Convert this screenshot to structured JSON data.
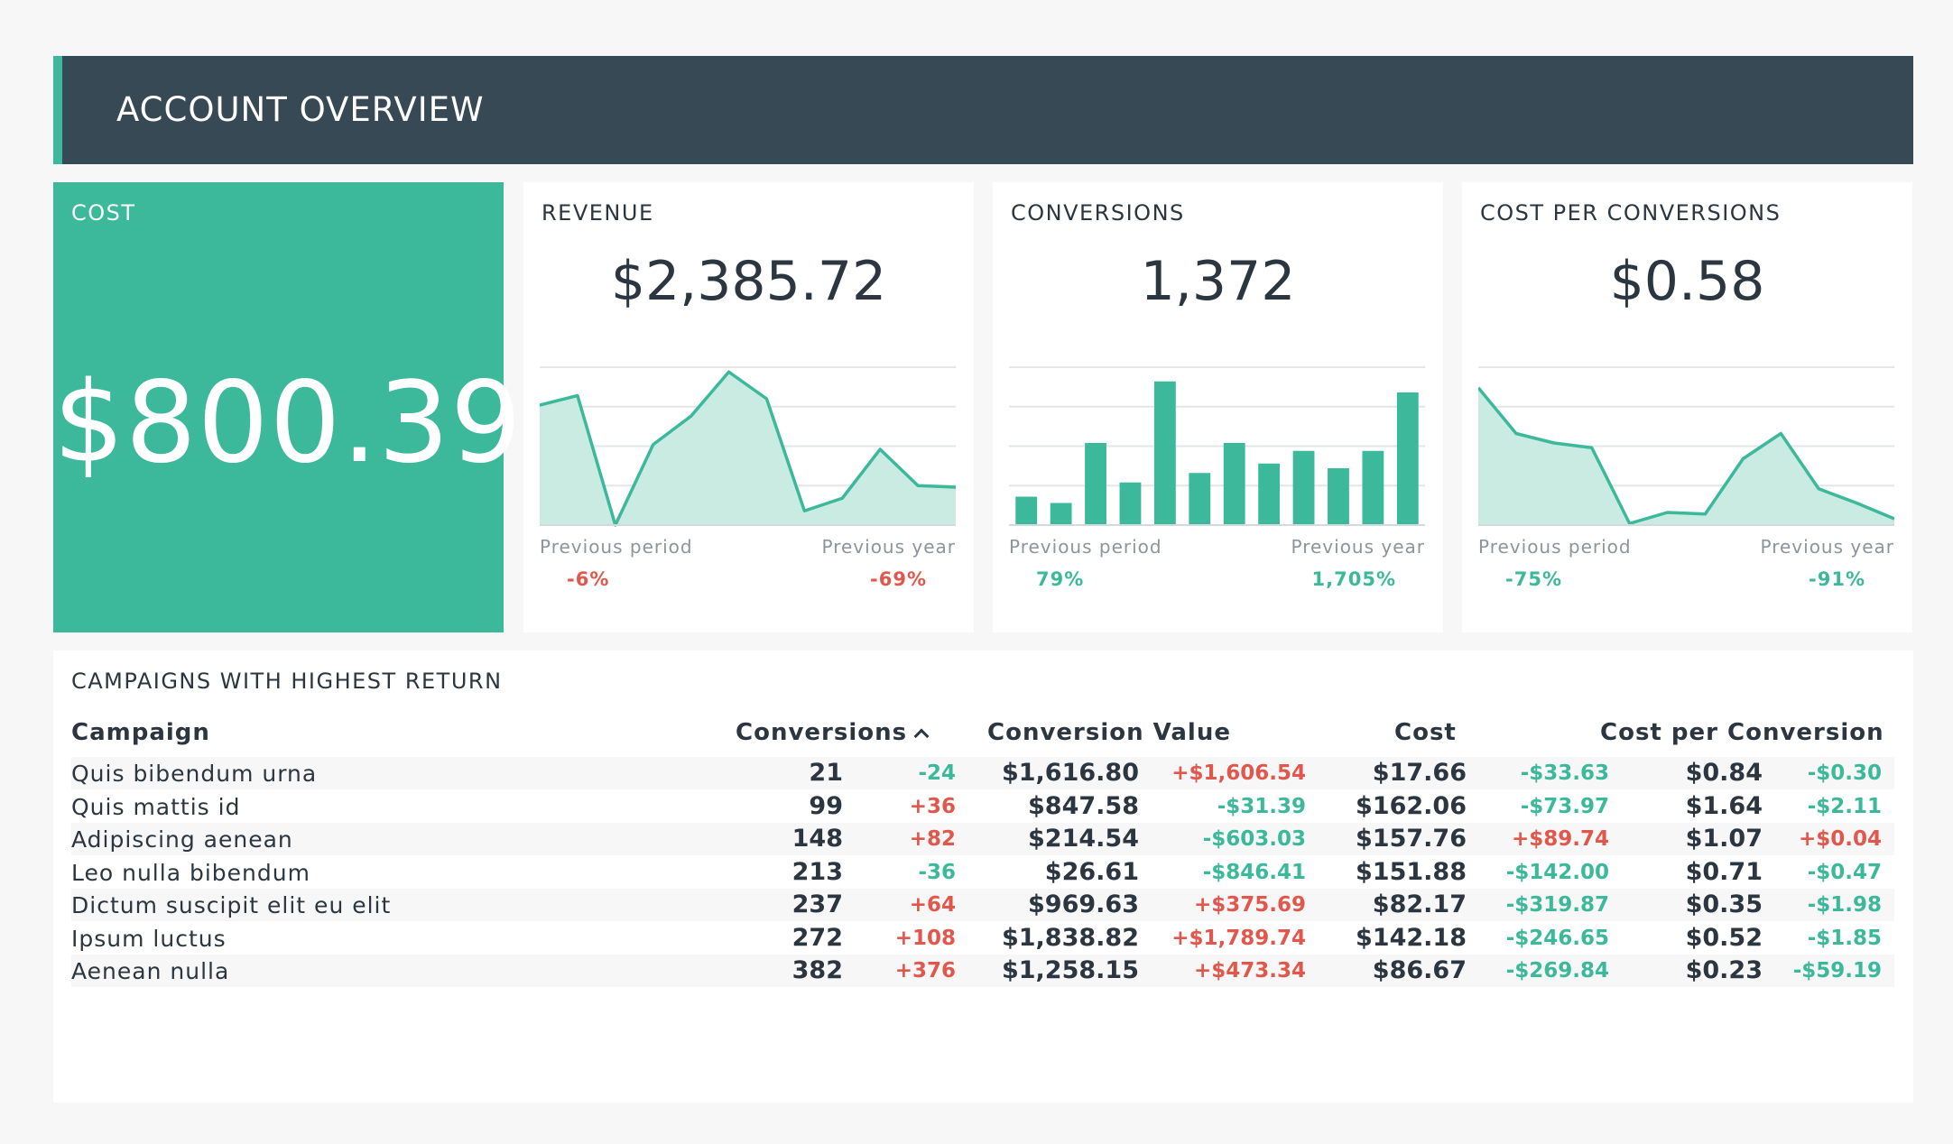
{
  "header": {
    "title": "ACCOUNT OVERVIEW"
  },
  "colors": {
    "accent": "#3bb99a",
    "header_bg": "#364954",
    "negative": "#e2574c",
    "positive": "#3bb99a"
  },
  "cost_card": {
    "title": "COST",
    "value": "$800.39"
  },
  "kpis": [
    {
      "title": "REVENUE",
      "value": "$2,385.72",
      "chart_type": "area",
      "previous_period_label": "Previous period",
      "previous_period_value": "-6%",
      "previous_period_sign": "neg",
      "previous_year_label": "Previous year",
      "previous_year_value": "-69%",
      "previous_year_sign": "neg",
      "series": [
        76,
        82,
        0,
        51,
        69,
        97,
        80,
        9,
        17,
        48,
        25,
        24
      ]
    },
    {
      "title": "CONVERSIONS",
      "value": "1,372",
      "chart_type": "bar",
      "previous_period_label": "Previous period",
      "previous_period_value": "79%",
      "previous_period_sign": "pos",
      "previous_year_label": "Previous year",
      "previous_year_value": "1,705%",
      "previous_year_sign": "pos",
      "series": [
        18,
        14,
        52,
        27,
        91,
        33,
        52,
        39,
        47,
        36,
        47,
        84
      ]
    },
    {
      "title": "COST PER CONVERSIONS",
      "value": "$0.58",
      "chart_type": "area",
      "previous_period_label": "Previous period",
      "previous_period_value": "-75%",
      "previous_period_sign": "pos",
      "previous_year_label": "Previous year",
      "previous_year_value": "-91%",
      "previous_year_sign": "pos",
      "series": [
        87,
        58,
        52,
        49,
        1,
        8,
        7,
        42,
        58,
        23,
        14,
        4
      ]
    }
  ],
  "table": {
    "title": "CAMPAIGNS WITH HIGHEST RETURN",
    "headers": {
      "campaign": "Campaign",
      "conversions": "Conversions",
      "conversion_value": "Conversion Value",
      "cost": "Cost",
      "cost_per_conversion": "Cost per Conversion"
    },
    "sort_icon": "chevron-up-icon",
    "rows": [
      {
        "name": "Quis bibendum urna",
        "conv": "21",
        "conv_d": "-24",
        "conv_s": "pos",
        "val": "$1,616.80",
        "val_d": "+$1,606.54",
        "val_s": "neg",
        "cost": "$17.66",
        "cost_d": "-$33.63",
        "cost_s": "pos",
        "cpc": "$0.84",
        "cpc_d": "-$0.30",
        "cpc_s": "pos"
      },
      {
        "name": "Quis mattis id",
        "conv": "99",
        "conv_d": "+36",
        "conv_s": "neg",
        "val": "$847.58",
        "val_d": "-$31.39",
        "val_s": "pos",
        "cost": "$162.06",
        "cost_d": "-$73.97",
        "cost_s": "pos",
        "cpc": "$1.64",
        "cpc_d": "-$2.11",
        "cpc_s": "pos"
      },
      {
        "name": "Adipiscing aenean",
        "conv": "148",
        "conv_d": "+82",
        "conv_s": "neg",
        "val": "$214.54",
        "val_d": "-$603.03",
        "val_s": "pos",
        "cost": "$157.76",
        "cost_d": "+$89.74",
        "cost_s": "neg",
        "cpc": "$1.07",
        "cpc_d": "+$0.04",
        "cpc_s": "neg"
      },
      {
        "name": "Leo nulla bibendum",
        "conv": "213",
        "conv_d": "-36",
        "conv_s": "pos",
        "val": "$26.61",
        "val_d": "-$846.41",
        "val_s": "pos",
        "cost": "$151.88",
        "cost_d": "-$142.00",
        "cost_s": "pos",
        "cpc": "$0.71",
        "cpc_d": "-$0.47",
        "cpc_s": "pos"
      },
      {
        "name": "Dictum suscipit elit eu elit",
        "conv": "237",
        "conv_d": "+64",
        "conv_s": "neg",
        "val": "$969.63",
        "val_d": "+$375.69",
        "val_s": "neg",
        "cost": "$82.17",
        "cost_d": "-$319.87",
        "cost_s": "pos",
        "cpc": "$0.35",
        "cpc_d": "-$1.98",
        "cpc_s": "pos"
      },
      {
        "name": "Ipsum luctus",
        "conv": "272",
        "conv_d": "+108",
        "conv_s": "neg",
        "val": "$1,838.82",
        "val_d": "+$1,789.74",
        "val_s": "neg",
        "cost": "$142.18",
        "cost_d": "-$246.65",
        "cost_s": "pos",
        "cpc": "$0.52",
        "cpc_d": "-$1.85",
        "cpc_s": "pos"
      },
      {
        "name": "Aenean nulla",
        "conv": "382",
        "conv_d": "+376",
        "conv_s": "neg",
        "val": "$1,258.15",
        "val_d": "+$473.34",
        "val_s": "neg",
        "cost": "$86.67",
        "cost_d": "-$269.84",
        "cost_s": "pos",
        "cpc": "$0.23",
        "cpc_d": "-$59.19",
        "cpc_s": "pos"
      }
    ]
  }
}
